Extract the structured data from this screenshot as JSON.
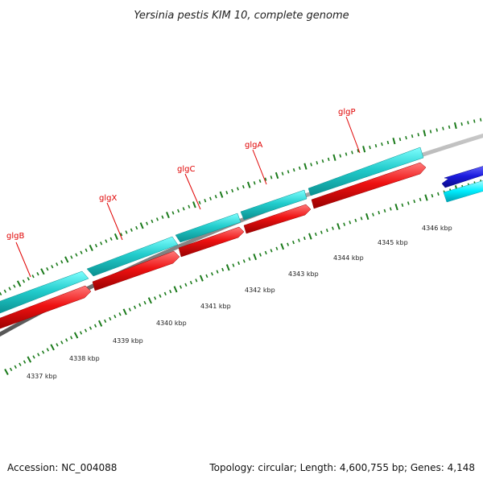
{
  "title": "Yersinia pestis KIM 10, complete genome",
  "footer": {
    "accession": "Accession: NC_004088",
    "summary": "Topology: circular; Length: 4,600,755 bp; Genes: 4,148"
  },
  "genes": [
    {
      "name": "glgB"
    },
    {
      "name": "glgX"
    },
    {
      "name": "glgC"
    },
    {
      "name": "glgA"
    },
    {
      "name": "glgP"
    }
  ],
  "scale_labels": [
    "4337 kbp",
    "4338 kbp",
    "4339 kbp",
    "4340 kbp",
    "4341 kbp",
    "4342 kbp",
    "4343 kbp",
    "4344 kbp",
    "4345 kbp",
    "4346 kbp"
  ],
  "colors": {
    "cds_upper": "#22cccc",
    "gene_lower": "#ee1111",
    "backbone": "#8a8a8a",
    "other_cds": "#1a1add",
    "other_cds_2": "#00eeff",
    "tick": "#1a7a1a",
    "label": "#e00000"
  }
}
